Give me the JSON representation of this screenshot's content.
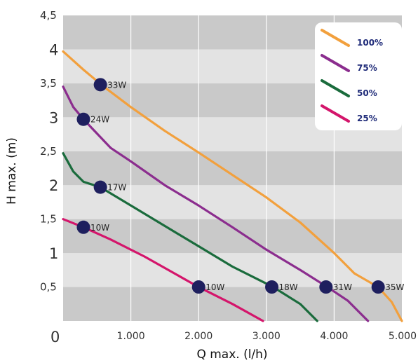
{
  "chart_data": {
    "type": "line",
    "xlabel": "Q max. (l/h)",
    "ylabel": "H max. (m)",
    "xlim": [
      0,
      5000
    ],
    "ylim": [
      0,
      4.5
    ],
    "x_ticks": [
      "0",
      "1.000",
      "2.000",
      "3.000",
      "4.000",
      "5.000"
    ],
    "y_ticks": [
      "0,5",
      "1",
      "1,5",
      "2",
      "2,5",
      "3",
      "3,5",
      "4",
      "4,5"
    ],
    "legend_position": "top-right",
    "grid": true,
    "series": [
      {
        "name": "100%",
        "color": "#f2a03d",
        "points": [
          [
            0,
            3.97
          ],
          [
            300,
            3.7
          ],
          [
            600,
            3.45
          ],
          [
            1000,
            3.15
          ],
          [
            1500,
            2.8
          ],
          [
            2000,
            2.48
          ],
          [
            2500,
            2.15
          ],
          [
            3000,
            1.82
          ],
          [
            3500,
            1.45
          ],
          [
            4000,
            1.0
          ],
          [
            4300,
            0.7
          ],
          [
            4650,
            0.5
          ],
          [
            4850,
            0.28
          ],
          [
            5000,
            0.0
          ]
        ]
      },
      {
        "name": "75%",
        "color": "#8b2d8e",
        "points": [
          [
            0,
            3.45
          ],
          [
            150,
            3.15
          ],
          [
            300,
            2.97
          ],
          [
            700,
            2.55
          ],
          [
            1000,
            2.35
          ],
          [
            1500,
            2.0
          ],
          [
            2000,
            1.7
          ],
          [
            2500,
            1.38
          ],
          [
            3000,
            1.05
          ],
          [
            3500,
            0.75
          ],
          [
            3900,
            0.5
          ],
          [
            4200,
            0.3
          ],
          [
            4500,
            0.0
          ]
        ]
      },
      {
        "name": "50%",
        "color": "#1a6b3c",
        "points": [
          [
            0,
            2.47
          ],
          [
            150,
            2.2
          ],
          [
            300,
            2.05
          ],
          [
            550,
            1.97
          ],
          [
            1000,
            1.7
          ],
          [
            1500,
            1.4
          ],
          [
            2000,
            1.1
          ],
          [
            2500,
            0.8
          ],
          [
            3100,
            0.5
          ],
          [
            3500,
            0.25
          ],
          [
            3750,
            0.0
          ]
        ]
      },
      {
        "name": "25%",
        "color": "#d4156b",
        "points": [
          [
            0,
            1.5
          ],
          [
            300,
            1.38
          ],
          [
            700,
            1.2
          ],
          [
            1200,
            0.95
          ],
          [
            2000,
            0.5
          ],
          [
            2500,
            0.25
          ],
          [
            2950,
            0.0
          ]
        ]
      }
    ],
    "markers": [
      {
        "label": "33W",
        "x": 550,
        "y": 3.48
      },
      {
        "label": "24W",
        "x": 300,
        "y": 2.97
      },
      {
        "label": "17W",
        "x": 550,
        "y": 1.97
      },
      {
        "label": "10W",
        "x": 300,
        "y": 1.38
      },
      {
        "label": "10W",
        "x": 2000,
        "y": 0.5
      },
      {
        "label": "18W",
        "x": 3080,
        "y": 0.5
      },
      {
        "label": "31W",
        "x": 3880,
        "y": 0.5
      },
      {
        "label": "35W",
        "x": 4650,
        "y": 0.5
      }
    ],
    "colors": {
      "marker": "#1e1f5e",
      "band_dark": "#c9c9c9",
      "band_light": "#e3e3e3",
      "gridline": "#ffffff"
    }
  }
}
